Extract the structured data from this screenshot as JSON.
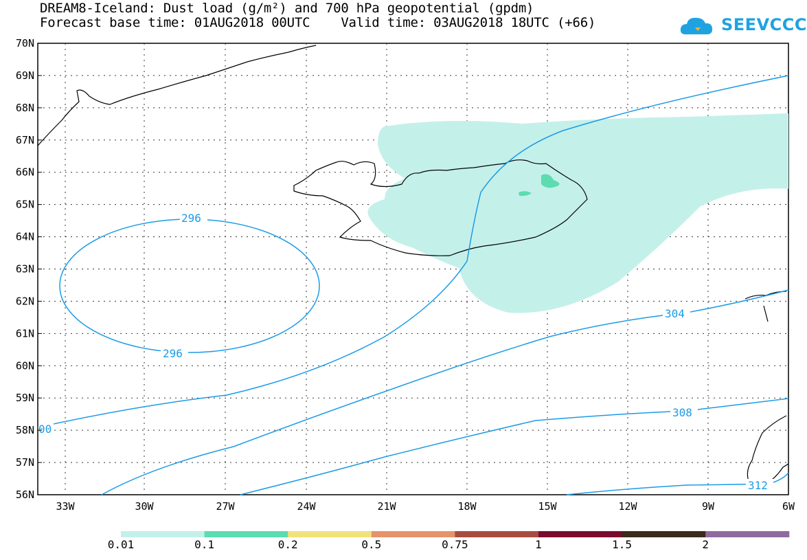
{
  "title": {
    "line1": "DREAM8-Iceland: Dust load (g/m²) and 700 hPa geopotential (gpdm)",
    "line2": "Forecast base time: 01AUG2018 00UTC    Valid time: 03AUG2018 18UTC (+66)"
  },
  "logo": {
    "text": "SEEVCCC",
    "color": "#1fa3e0"
  },
  "axes": {
    "lat_labels": [
      "70N",
      "69N",
      "68N",
      "67N",
      "66N",
      "65N",
      "64N",
      "63N",
      "62N",
      "61N",
      "60N",
      "59N",
      "58N",
      "57N",
      "56N"
    ],
    "lon_labels": [
      "33W",
      "30W",
      "27W",
      "24W",
      "21W",
      "18W",
      "15W",
      "12W",
      "9W",
      "6W"
    ]
  },
  "contours": {
    "color": "#1a9be6",
    "labels": [
      "296",
      "296",
      "304",
      "308",
      "312",
      "00"
    ]
  },
  "colorbar": {
    "colors": [
      "#c4f0ea",
      "#5cdcb0",
      "#f2e27a",
      "#e6936a",
      "#a84c42",
      "#7a0a2e",
      "#3a2a1a",
      "#8e6a9e"
    ],
    "labels": [
      "0.01",
      "0.1",
      "0.2",
      "0.5",
      "0.75",
      "1",
      "1.5",
      "2"
    ]
  }
}
